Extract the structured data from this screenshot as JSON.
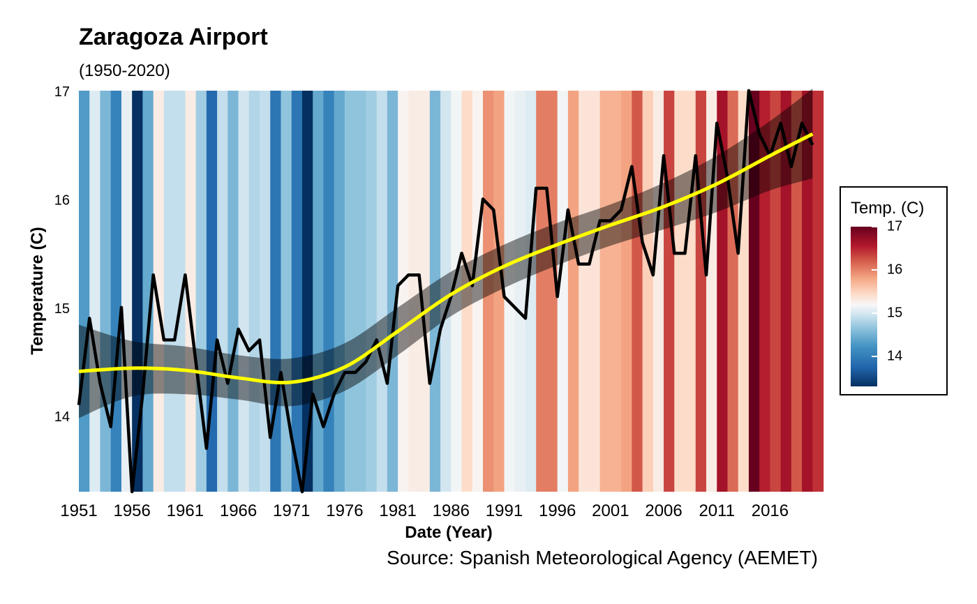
{
  "chart_data": {
    "type": "line",
    "title": "Zaragoza Airport",
    "subtitle": "(1950-2020)",
    "xlabel": "Date (Year)",
    "ylabel": "Temperature (C)",
    "caption": "Source: Spanish Meteorological Agency (AEMET)",
    "xlim": [
      1951,
      2020
    ],
    "ylim": [
      13.3,
      17
    ],
    "x_ticks": [
      1951,
      1956,
      1961,
      1966,
      1971,
      1976,
      1981,
      1986,
      1991,
      1996,
      2001,
      2006,
      2011,
      2016
    ],
    "y_ticks": [
      14,
      15,
      16,
      17
    ],
    "background": "annual temperature stripes colored by value",
    "series": [
      {
        "name": "",
        "color": "#000000",
        "x": [
          1951,
          1952,
          1953,
          1954,
          1955,
          1956,
          1957,
          1958,
          1959,
          1960,
          1961,
          1962,
          1963,
          1964,
          1965,
          1966,
          1967,
          1968,
          1969,
          1970,
          1971,
          1972,
          1973,
          1974,
          1975,
          1976,
          1977,
          1978,
          1979,
          1980,
          1981,
          1982,
          1983,
          1984,
          1985,
          1986,
          1987,
          1988,
          1989,
          1990,
          1991,
          1992,
          1993,
          1994,
          1995,
          1996,
          1997,
          1998,
          1999,
          2000,
          2001,
          2002,
          2003,
          2004,
          2005,
          2006,
          2007,
          2008,
          2009,
          2010,
          2011,
          2012,
          2013,
          2014,
          2015,
          2016,
          2017,
          2018,
          2019,
          2020
        ],
        "y": [
          14.1,
          14.9,
          14.3,
          13.9,
          15.0,
          13.3,
          14.2,
          15.3,
          14.7,
          14.7,
          15.3,
          14.5,
          13.7,
          14.7,
          14.3,
          14.8,
          14.6,
          14.7,
          13.8,
          14.4,
          13.8,
          13.3,
          14.2,
          13.9,
          14.2,
          14.4,
          14.4,
          14.5,
          14.7,
          14.3,
          15.2,
          15.3,
          15.3,
          14.3,
          14.8,
          15.1,
          15.5,
          15.2,
          16.0,
          15.9,
          15.1,
          15.0,
          14.9,
          16.1,
          16.1,
          15.1,
          15.9,
          15.4,
          15.4,
          15.8,
          15.8,
          15.9,
          16.3,
          15.6,
          15.3,
          16.4,
          15.5,
          15.5,
          16.4,
          15.3,
          16.7,
          16.2,
          15.5,
          17.0,
          16.6,
          16.4,
          16.7,
          16.3,
          16.7,
          16.5
        ]
      },
      {
        "name": "",
        "color": "#ffff00",
        "x": [
          1951,
          1956,
          1961,
          1966,
          1971,
          1976,
          1981,
          1986,
          1991,
          1996,
          2001,
          2006,
          2011,
          2016,
          2020
        ],
        "y": [
          14.41,
          14.44,
          14.42,
          14.35,
          14.31,
          14.45,
          14.78,
          15.12,
          15.38,
          15.58,
          15.76,
          15.93,
          16.14,
          16.4,
          16.6
        ],
        "band_lower": [
          13.98,
          14.18,
          14.2,
          14.15,
          14.09,
          14.23,
          14.56,
          14.92,
          15.18,
          15.39,
          15.57,
          15.72,
          15.88,
          16.08,
          16.19
        ],
        "band_upper": [
          14.84,
          14.69,
          14.64,
          14.56,
          14.53,
          14.67,
          15.0,
          15.33,
          15.58,
          15.78,
          15.95,
          16.15,
          16.4,
          16.72,
          17.02
        ]
      }
    ],
    "legend": {
      "title": "Temp. (C)",
      "position": "right",
      "min": 13.3,
      "max": 17,
      "ticks": [
        14,
        15,
        16,
        17
      ],
      "palette": [
        "#053061",
        "#2166ac",
        "#4393c3",
        "#92c5de",
        "#d1e5f0",
        "#f7f7f7",
        "#fddbc7",
        "#f4a582",
        "#d6604d",
        "#b2182b",
        "#67001f"
      ]
    }
  }
}
